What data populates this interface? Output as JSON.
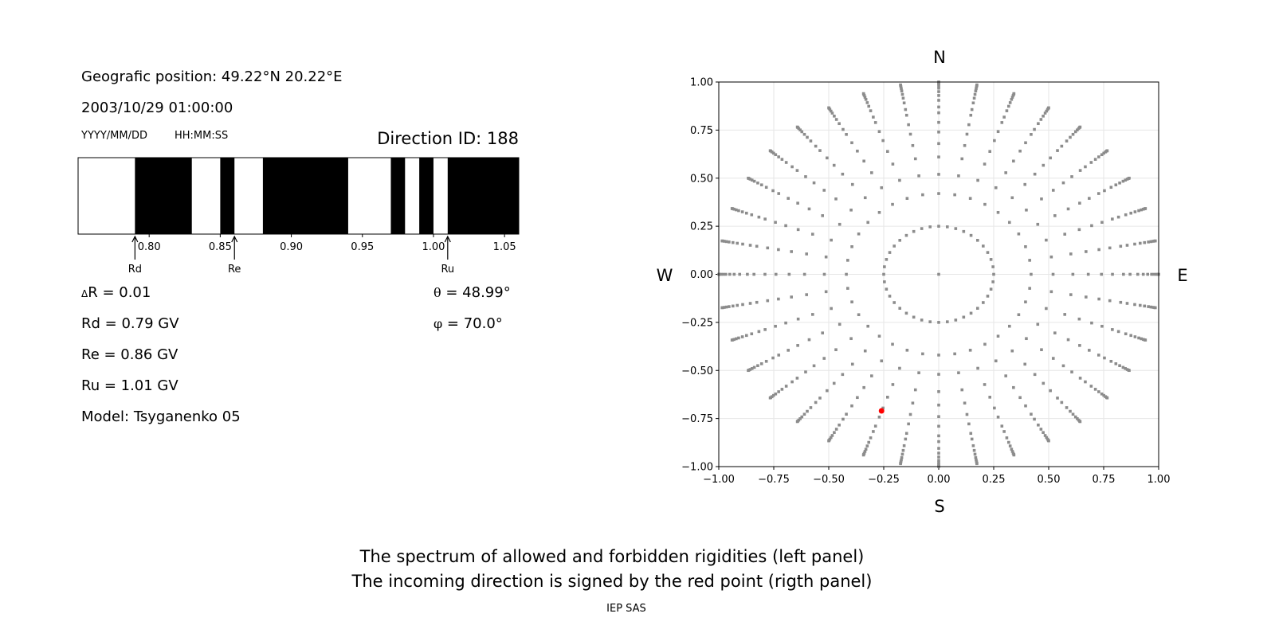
{
  "info": {
    "position": "Geografic position: 49.22°N 20.22°E",
    "datetime": "2003/10/29 01:00:00",
    "date_format": "YYYY/MM/DD",
    "time_format": "HH:MM:SS",
    "direction_id": "Direction ID: 188",
    "delta_r_symbol": "Δ",
    "delta_r": "R = 0.01",
    "rd": "Rd = 0.79 GV",
    "re": "Re = 0.86 GV",
    "ru": "Ru = 1.01 GV",
    "model": "Model: Tsyganenko 05",
    "theta_symbol": "θ",
    "theta": " = 48.99°",
    "phi_symbol": "φ",
    "phi": " = 70.0°"
  },
  "compass": {
    "n": "N",
    "s": "S",
    "e": "E",
    "w": "W"
  },
  "caption": {
    "line1": "The spectrum of allowed and forbidden rigidities (left panel)",
    "line2": "The incoming direction is signed by the red point (rigth panel)",
    "credit": "IEP SAS"
  },
  "chart_data": [
    {
      "type": "bar",
      "subtype": "rigidity-spectrum",
      "xlim": [
        0.75,
        1.06
      ],
      "xticks": [
        "0.80",
        "0.85",
        "0.90",
        "0.95",
        "1.00",
        "1.05"
      ],
      "colors": {
        "forbidden": "#000000",
        "allowed": "#ffffff"
      },
      "forbidden_bands": [
        [
          0.79,
          0.83
        ],
        [
          0.85,
          0.86
        ],
        [
          0.88,
          0.94
        ],
        [
          0.97,
          0.98
        ],
        [
          0.99,
          1.0
        ],
        [
          1.01,
          1.06
        ]
      ],
      "markers": [
        {
          "label": "Rd",
          "value": 0.79
        },
        {
          "label": "Re",
          "value": 0.86
        },
        {
          "label": "Ru",
          "value": 1.01
        }
      ]
    },
    {
      "type": "scatter",
      "xlim": [
        -1,
        1
      ],
      "ylim": [
        -1,
        1
      ],
      "grid": true,
      "xticks": [
        "−1.00",
        "−0.75",
        "−0.50",
        "−0.25",
        "0.00",
        "0.25",
        "0.50",
        "0.75",
        "1.00"
      ],
      "yticks": [
        "−1.00",
        "−0.75",
        "−0.50",
        "−0.25",
        "0.00",
        "0.25",
        "0.50",
        "0.75",
        "1.00"
      ],
      "point_color": "#8c8c8c",
      "highlight_color": "#ff0000",
      "directions": {
        "azimuth_step_deg": 10,
        "inner_ring_radius": 0.25,
        "inner_ring_azimuth_step_deg": 9,
        "spoke_radii": [
          0.42,
          0.52,
          0.61,
          0.68,
          0.74,
          0.79,
          0.84,
          0.87,
          0.905,
          0.93,
          0.95,
          0.968,
          0.98,
          0.99,
          0.997,
          1.0
        ],
        "center": [
          0,
          0
        ]
      },
      "highlight_point": {
        "x": -0.26,
        "y": -0.71
      }
    }
  ]
}
